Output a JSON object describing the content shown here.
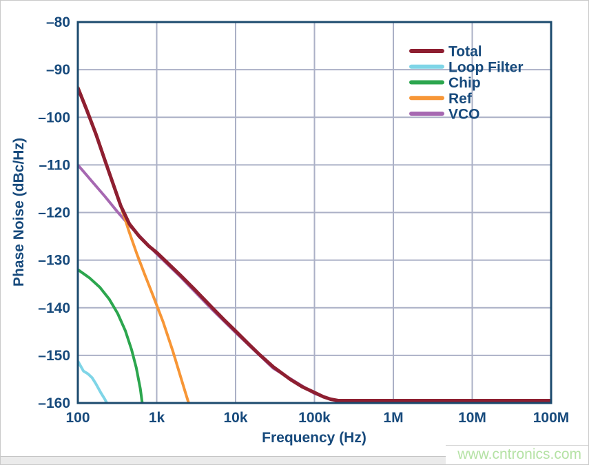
{
  "watermark_text": "www.cntronics.com",
  "colors": {
    "axis_frame": "#1b4a6d",
    "grid": "#abb0c6",
    "text": "#174a7c",
    "watermark": "#b5e2a5",
    "background": "#ffffff"
  },
  "chart_data": {
    "type": "line",
    "title": "",
    "xlabel": "Frequency (Hz)",
    "ylabel": "Phase Noise (dBc/Hz)",
    "x_scale": "log",
    "y_scale": "linear",
    "xlim": [
      100,
      100000000
    ],
    "ylim": [
      -160,
      -80
    ],
    "grid": true,
    "legend_position": "top-right",
    "x_ticks": [
      {
        "value": 100,
        "label": "100"
      },
      {
        "value": 1000,
        "label": "1k"
      },
      {
        "value": 10000,
        "label": "10k"
      },
      {
        "value": 100000,
        "label": "100k"
      },
      {
        "value": 1000000,
        "label": "1M"
      },
      {
        "value": 10000000,
        "label": "10M"
      },
      {
        "value": 100000000,
        "label": "100M"
      }
    ],
    "y_ticks": [
      {
        "value": -80,
        "label": "–80"
      },
      {
        "value": -90,
        "label": "–90"
      },
      {
        "value": -100,
        "label": "–100"
      },
      {
        "value": -110,
        "label": "–110"
      },
      {
        "value": -120,
        "label": "–120"
      },
      {
        "value": -130,
        "label": "–130"
      },
      {
        "value": -140,
        "label": "–140"
      },
      {
        "value": -150,
        "label": "–150"
      },
      {
        "value": -160,
        "label": "–160"
      }
    ],
    "series": [
      {
        "name": "Total",
        "color": "#8e1f31",
        "width": 5,
        "points": [
          [
            100,
            -93.8
          ],
          [
            130,
            -98.5
          ],
          [
            170,
            -103.6
          ],
          [
            220,
            -109
          ],
          [
            280,
            -114
          ],
          [
            350,
            -118.6
          ],
          [
            450,
            -122.4
          ],
          [
            600,
            -125
          ],
          [
            800,
            -127.1
          ],
          [
            1000,
            -128.4
          ],
          [
            1500,
            -131.2
          ],
          [
            2000,
            -133.2
          ],
          [
            3000,
            -136.1
          ],
          [
            5000,
            -139.9
          ],
          [
            7000,
            -142.4
          ],
          [
            10000,
            -144.9
          ],
          [
            15000,
            -147.8
          ],
          [
            20000,
            -149.8
          ],
          [
            30000,
            -152.4
          ],
          [
            50000,
            -155.1
          ],
          [
            70000,
            -156.6
          ],
          [
            100000,
            -157.8
          ],
          [
            130000,
            -158.7
          ],
          [
            160000,
            -159.2
          ],
          [
            200000,
            -159.5
          ],
          [
            1000000,
            -159.5
          ],
          [
            10000000,
            -159.5
          ],
          [
            100000000,
            -159.5
          ]
        ]
      },
      {
        "name": "Loop Filter",
        "color": "#7fd5e7",
        "width": 4,
        "points": [
          [
            100,
            -151.2
          ],
          [
            118,
            -153.3
          ],
          [
            135,
            -153.9
          ],
          [
            152,
            -154.7
          ],
          [
            170,
            -156
          ],
          [
            195,
            -157.8
          ],
          [
            220,
            -159.2
          ],
          [
            250,
            -161
          ]
        ]
      },
      {
        "name": "Chip",
        "color": "#2ca64e",
        "width": 4,
        "points": [
          [
            100,
            -132
          ],
          [
            140,
            -133.7
          ],
          [
            190,
            -135.7
          ],
          [
            250,
            -138.2
          ],
          [
            320,
            -141.2
          ],
          [
            400,
            -144.8
          ],
          [
            480,
            -148.8
          ],
          [
            550,
            -152.6
          ],
          [
            620,
            -157
          ],
          [
            668,
            -161
          ]
        ]
      },
      {
        "name": "Ref",
        "color": "#f79636",
        "width": 4,
        "points": [
          [
            100,
            -93.6
          ],
          [
            130,
            -98.3
          ],
          [
            170,
            -103.4
          ],
          [
            220,
            -108.8
          ],
          [
            280,
            -113.9
          ],
          [
            350,
            -118.6
          ],
          [
            450,
            -124.2
          ],
          [
            560,
            -128.7
          ],
          [
            700,
            -132.9
          ],
          [
            900,
            -137.5
          ],
          [
            1200,
            -142.9
          ],
          [
            1600,
            -149.1
          ],
          [
            2000,
            -154.4
          ],
          [
            2300,
            -157.7
          ],
          [
            2650,
            -161
          ]
        ]
      },
      {
        "name": "VCO",
        "color": "#a668b1",
        "width": 4,
        "points": [
          [
            100,
            -110
          ],
          [
            150,
            -113.4
          ],
          [
            220,
            -116.6
          ],
          [
            320,
            -119.9
          ],
          [
            450,
            -122.7
          ],
          [
            700,
            -126
          ],
          [
            1000,
            -128.7
          ],
          [
            2000,
            -133.5
          ],
          [
            5000,
            -140.3
          ],
          [
            10000,
            -145.2
          ],
          [
            30000,
            -152.7
          ],
          [
            100000,
            -158
          ],
          [
            200000,
            -159.7
          ],
          [
            1000000,
            -159.7
          ],
          [
            100000000,
            -159.7
          ]
        ]
      }
    ]
  }
}
